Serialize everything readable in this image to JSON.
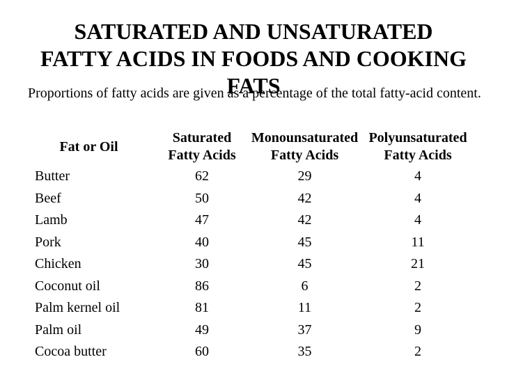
{
  "slide": {
    "title": {
      "lines": [
        "SATURATED AND UNSATURATED",
        "FATTY ACIDS IN FOODS AND COOKING",
        "FATS"
      ]
    },
    "subtitle": "Proportions of fatty acids are given as a percentage of the total fatty-acid content.",
    "table": {
      "headers": {
        "fat_or_oil": "Fat or Oil",
        "saturated": "Saturated\nFatty Acids",
        "monounsaturated": "Monounsaturated\nFatty Acids",
        "polyunsaturated": "Polyunsaturated\nFatty Acids"
      },
      "rows": [
        {
          "name": "Butter",
          "sat": 62,
          "mono": 29,
          "poly": 4
        },
        {
          "name": "Beef",
          "sat": 50,
          "mono": 42,
          "poly": 4
        },
        {
          "name": "Lamb",
          "sat": 47,
          "mono": 42,
          "poly": 4
        },
        {
          "name": "Pork",
          "sat": 40,
          "mono": 45,
          "poly": 11
        },
        {
          "name": "Chicken",
          "sat": 30,
          "mono": 45,
          "poly": 21
        },
        {
          "name": "Coconut oil",
          "sat": 86,
          "mono": 6,
          "poly": 2
        },
        {
          "name": "Palm kernel oil",
          "sat": 81,
          "mono": 11,
          "poly": 2
        },
        {
          "name": "Palm oil",
          "sat": 49,
          "mono": 37,
          "poly": 9
        },
        {
          "name": "Cocoa butter",
          "sat": 60,
          "mono": 35,
          "poly": 2
        }
      ]
    },
    "colors": {
      "text": "#000000",
      "background": "#ffffff"
    }
  }
}
